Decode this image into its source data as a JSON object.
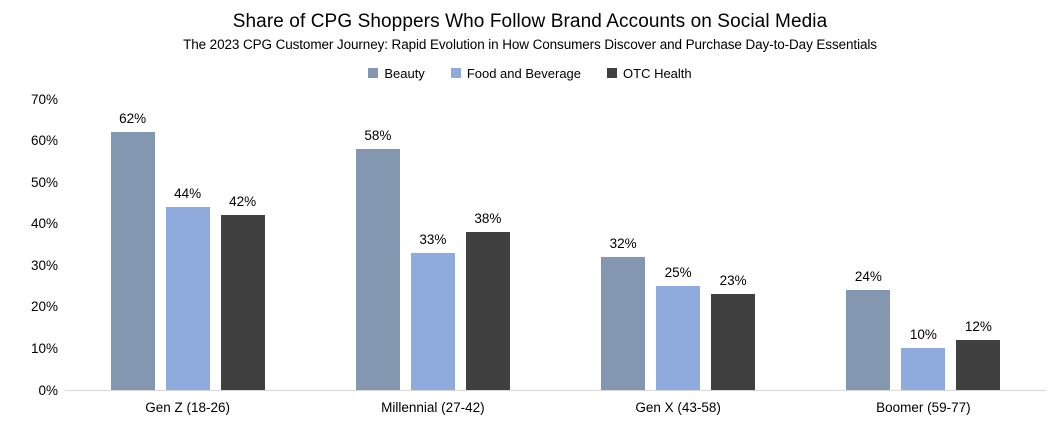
{
  "chart_data": {
    "type": "bar",
    "title": "Share of CPG Shoppers Who Follow Brand Accounts on Social Media",
    "subtitle": "The 2023 CPG Customer Journey: Rapid Evolution in How Consumers Discover and Purchase Day-to-Day Essentials",
    "categories": [
      "Gen Z (18-26)",
      "Millennial (27-42)",
      "Gen X (43-58)",
      "Boomer (59-77)"
    ],
    "series": [
      {
        "name": "Beauty",
        "color": "#8497B0",
        "values": [
          62,
          58,
          32,
          24
        ]
      },
      {
        "name": "Food and Beverage",
        "color": "#8FAADC",
        "values": [
          44,
          33,
          25,
          10
        ]
      },
      {
        "name": "OTC Health",
        "color": "#404040",
        "values": [
          42,
          38,
          23,
          12
        ]
      }
    ],
    "ylim": [
      0,
      70
    ],
    "ytick_step": 10,
    "ytick_labels": [
      "0%",
      "10%",
      "20%",
      "30%",
      "40%",
      "50%",
      "60%",
      "70%"
    ],
    "data_label_suffix": "%",
    "legend_position": "top",
    "grid": false,
    "xlabel": "",
    "ylabel": ""
  },
  "colors": {
    "axis_line": "#D9D9D9",
    "text": "#000000",
    "background": "#FFFFFF"
  }
}
